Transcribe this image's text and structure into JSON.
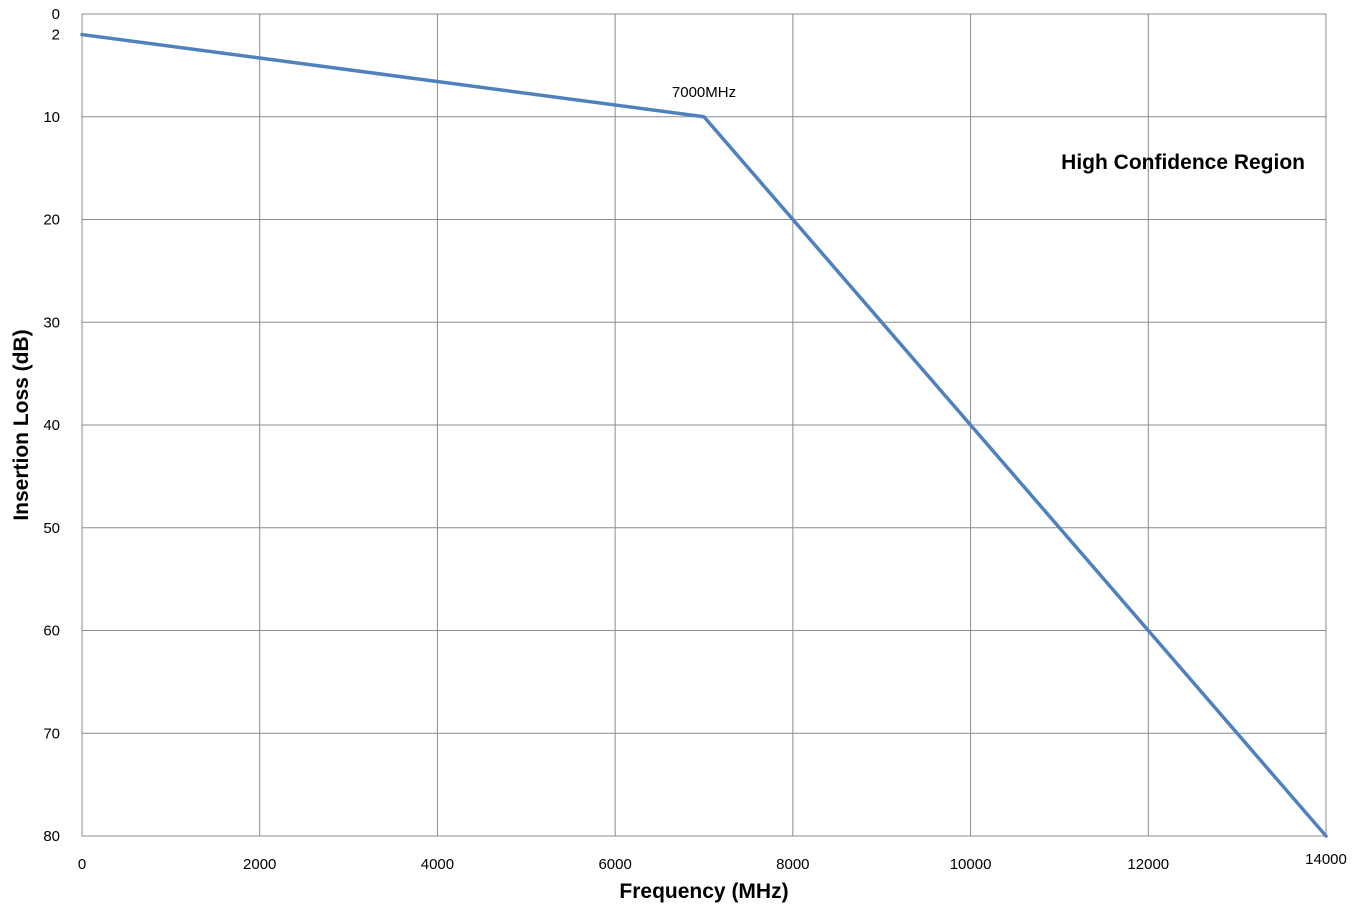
{
  "chart_data": {
    "type": "line",
    "title": "",
    "xlabel": "Frequency (MHz)",
    "ylabel": "Insertion Loss (dB)",
    "xlim": [
      0,
      14000
    ],
    "ylim": [
      0,
      80
    ],
    "y_inverted": true,
    "grid": true,
    "x_ticks": [
      "0",
      "2000",
      "4000",
      "6000",
      "8000",
      "10000",
      "12000",
      "14000"
    ],
    "y_ticks": [
      "0",
      "2",
      "10",
      "20",
      "30",
      "40",
      "50",
      "60",
      "70",
      "80"
    ],
    "series": [
      {
        "color": "#4f81bd",
        "x": [
          0,
          7000,
          14000
        ],
        "y": [
          2,
          10,
          80
        ]
      }
    ],
    "annotations": [
      {
        "text": "7000MHz",
        "x": 7000,
        "y": 10
      }
    ],
    "region_label": "High Confidence Region"
  }
}
